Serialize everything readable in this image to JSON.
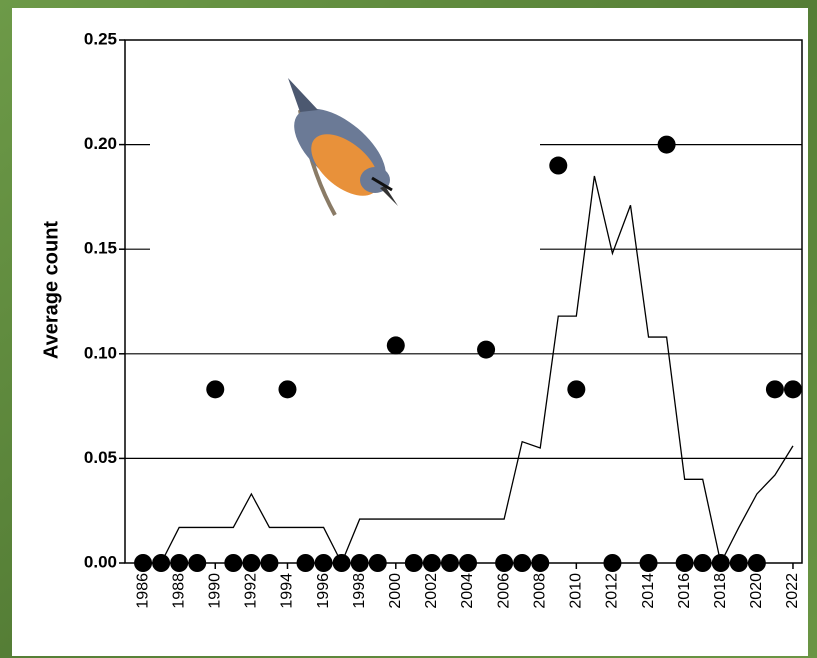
{
  "chart_data": {
    "type": "scatter",
    "y_label": "Average count",
    "x": [
      1986,
      1987,
      1988,
      1989,
      1990,
      1991,
      1992,
      1993,
      1994,
      1995,
      1996,
      1997,
      1998,
      1999,
      2000,
      2001,
      2002,
      2003,
      2004,
      2005,
      2006,
      2007,
      2008,
      2009,
      2010,
      2011,
      2012,
      2013,
      2014,
      2015,
      2016,
      2017,
      2018,
      2019,
      2020,
      2021,
      2022
    ],
    "series": [
      {
        "type": "scatter",
        "color": "#000000",
        "values": [
          0,
          0,
          0,
          0,
          0.083,
          0,
          0,
          0,
          0.083,
          0,
          0,
          0,
          0,
          0,
          0.104,
          0,
          0,
          0,
          0,
          0.102,
          0,
          0,
          0,
          0.19,
          0.083,
          null,
          0,
          null,
          0,
          0.2,
          0,
          0,
          0,
          0,
          0,
          0.083,
          0.083
        ]
      },
      {
        "type": "line",
        "color": "#000000",
        "values": [
          0,
          0,
          0.017,
          0.017,
          0.017,
          0.017,
          0.033,
          0.017,
          0.017,
          0.017,
          0.017,
          0,
          0.021,
          0.021,
          0.021,
          0.021,
          0.021,
          0.021,
          0.021,
          0.021,
          0.021,
          0.058,
          0.055,
          0.118,
          0.118,
          0.185,
          0.148,
          0.171,
          0.108,
          0.108,
          0.04,
          0.04,
          0,
          0.017,
          0.033,
          0.042,
          0.056
        ]
      }
    ],
    "xlim": [
      1985,
      2022.5
    ],
    "xticks": [
      1986,
      1988,
      1990,
      1992,
      1994,
      1996,
      1998,
      2000,
      2002,
      2004,
      2006,
      2008,
      2010,
      2012,
      2014,
      2016,
      2018,
      2020,
      2022
    ],
    "ylim": [
      0,
      0.25
    ],
    "yticks": [
      {
        "value": 0,
        "label": "0.00"
      },
      {
        "value": 0.05,
        "label": "0.05"
      },
      {
        "value": 0.1,
        "label": "0.10"
      },
      {
        "value": 0.15,
        "label": "0.15"
      },
      {
        "value": 0.2,
        "label": "0.20"
      },
      {
        "value": 0.25,
        "label": "0.25"
      }
    ],
    "grid": true
  }
}
